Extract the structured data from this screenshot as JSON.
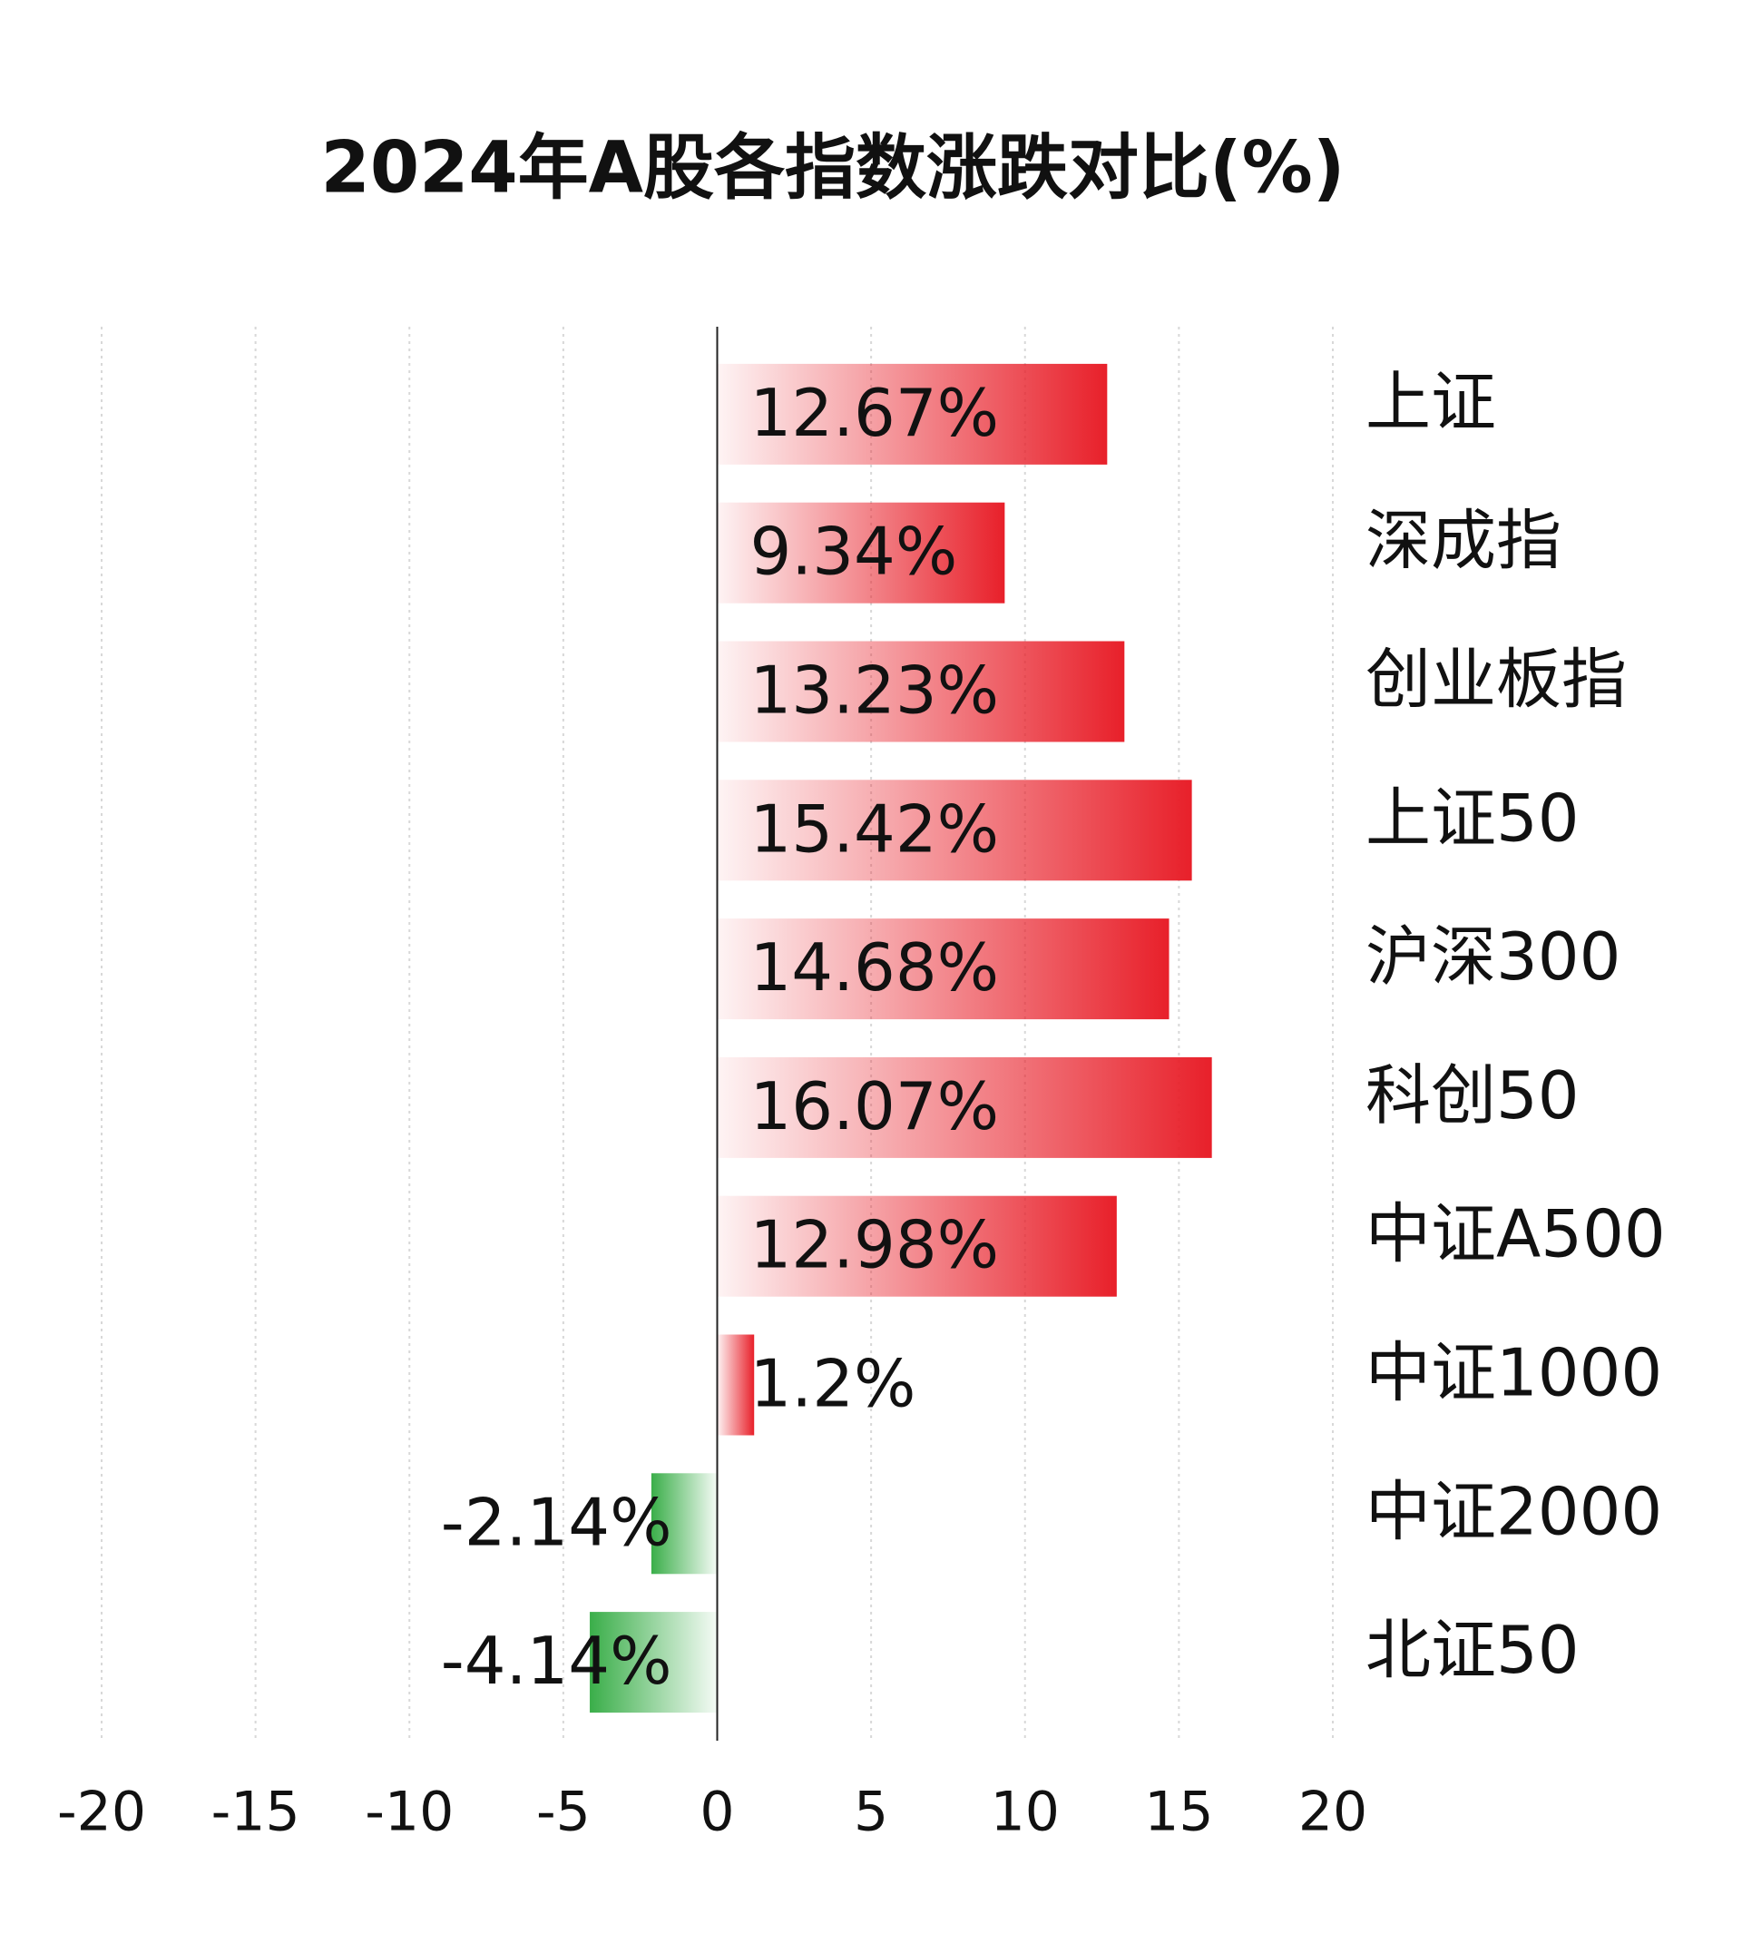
{
  "chart_data": {
    "type": "hbar",
    "title": "2024年A股各指数涨跌对比(%)",
    "categories": [
      "上证",
      "深成指",
      "创业板指",
      "上证50",
      "沪深300",
      "科创50",
      "中证A500",
      "中证1000",
      "中证2000",
      "北证50"
    ],
    "values": [
      12.67,
      9.34,
      13.23,
      15.42,
      14.68,
      16.07,
      12.98,
      1.2,
      -2.14,
      -4.14
    ],
    "value_labels": [
      "12.67%",
      "9.34%",
      "13.23%",
      "15.42%",
      "14.68%",
      "16.07%",
      "12.98%",
      "1.2%",
      "-2.14%",
      "-4.14%"
    ],
    "color": "#e8202a",
    "negative_color": "#3aae49",
    "xlim": [
      -20,
      20
    ],
    "xticks": [
      -20,
      -15,
      -10,
      -5,
      0,
      5,
      10,
      15,
      20
    ],
    "grid": true
  }
}
